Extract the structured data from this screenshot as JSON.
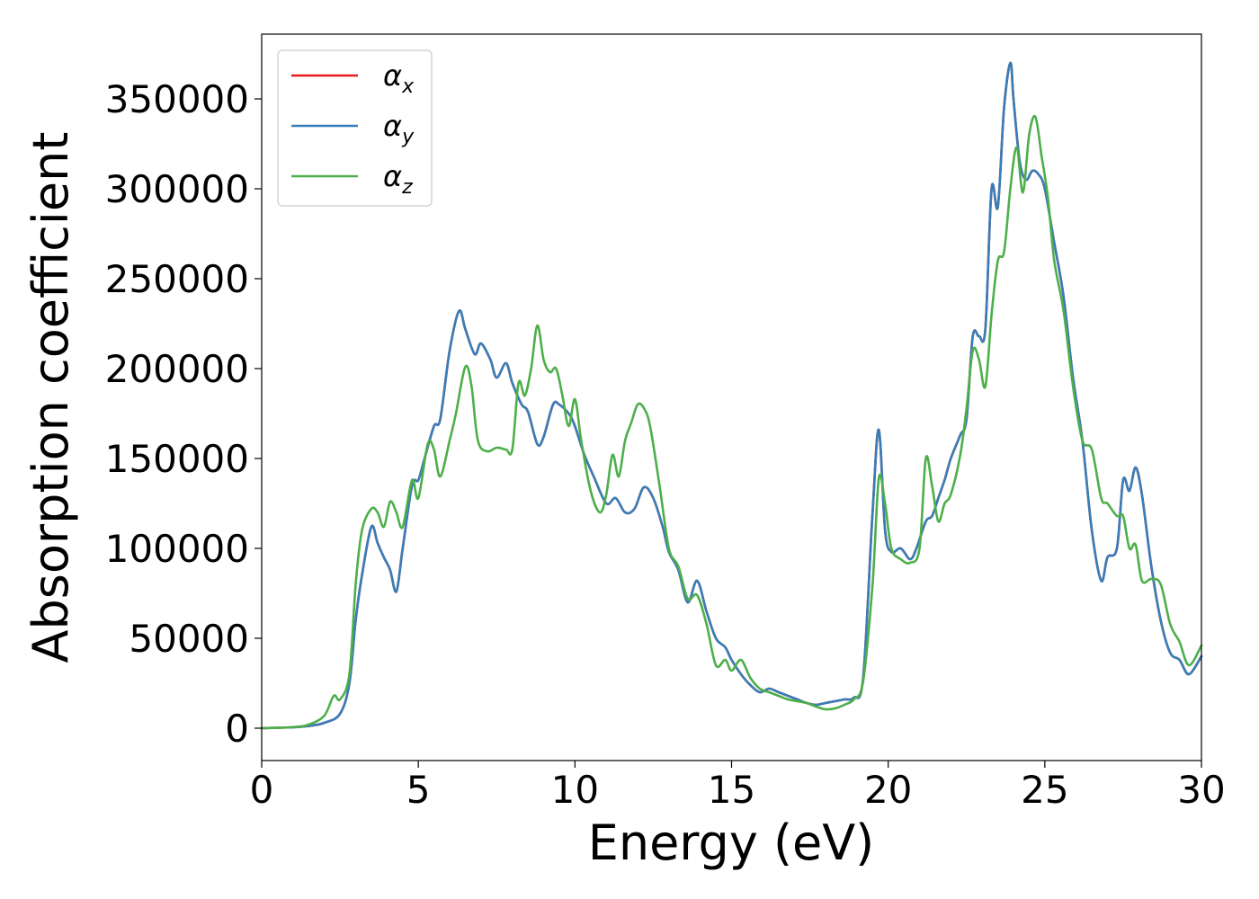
{
  "chart_data": {
    "type": "line",
    "xlabel": "Energy (eV)",
    "ylabel": "Absorption coefficient",
    "xlim": [
      0,
      30
    ],
    "ylim": [
      -18000,
      386000
    ],
    "xticks": [
      0,
      5,
      10,
      15,
      20,
      25,
      30
    ],
    "yticks": [
      0,
      50000,
      100000,
      150000,
      200000,
      250000,
      300000,
      350000
    ],
    "grid": false,
    "legend_position": "top-left",
    "legend": [
      {
        "symbol": "α",
        "sub": "x",
        "color": "#e41a1c"
      },
      {
        "symbol": "α",
        "sub": "y",
        "color": "#377eb8"
      },
      {
        "symbol": "α",
        "sub": "z",
        "color": "#4daf4a"
      }
    ],
    "series": [
      {
        "color": "#e41a1c",
        "x": [
          0,
          1,
          1.5,
          2,
          2.5,
          2.8,
          3,
          3.2,
          3.5,
          3.7,
          3.9,
          4.1,
          4.3,
          4.5,
          4.8,
          5,
          5.2,
          5.5,
          5.7,
          6,
          6.3,
          6.5,
          6.8,
          7,
          7.3,
          7.5,
          7.8,
          8,
          8.3,
          8.5,
          8.8,
          9,
          9.3,
          9.5,
          9.8,
          10,
          10.3,
          10.6,
          11,
          11.3,
          11.6,
          11.9,
          12.2,
          12.5,
          12.8,
          13,
          13.3,
          13.6,
          13.9,
          14.2,
          14.5,
          14.8,
          15,
          15.3,
          15.6,
          15.9,
          16.2,
          16.5,
          16.8,
          17.1,
          17.4,
          17.7,
          18,
          18.3,
          18.6,
          18.9,
          19.2,
          19.5,
          19.7,
          19.9,
          20.1,
          20.4,
          20.7,
          20.9,
          21.2,
          21.4,
          21.6,
          21.8,
          22,
          22.3,
          22.5,
          22.7,
          22.9,
          23.1,
          23.3,
          23.5,
          23.7,
          23.9,
          24,
          24.2,
          24.4,
          24.6,
          24.8,
          25,
          25.3,
          25.6,
          25.9,
          26.2,
          26.5,
          26.8,
          27,
          27.3,
          27.5,
          27.7,
          27.9,
          28.1,
          28.4,
          28.7,
          29,
          29.3,
          29.6,
          30
        ],
        "values": [
          0,
          500,
          1200,
          3000,
          8000,
          25000,
          60000,
          85000,
          112000,
          103000,
          95000,
          88000,
          76000,
          100000,
          135000,
          138000,
          150000,
          168000,
          172000,
          210000,
          232000,
          222000,
          208000,
          214000,
          205000,
          195000,
          203000,
          192000,
          180000,
          176000,
          158000,
          162000,
          180000,
          180000,
          175000,
          168000,
          152000,
          140000,
          125000,
          128000,
          120000,
          122000,
          134000,
          128000,
          112000,
          98000,
          88000,
          70000,
          82000,
          65000,
          50000,
          45000,
          38000,
          30000,
          24000,
          20000,
          22000,
          20000,
          18000,
          16000,
          14000,
          13000,
          14000,
          15000,
          16000,
          17000,
          28000,
          120000,
          166000,
          110000,
          98000,
          100000,
          94000,
          100000,
          115000,
          118000,
          128000,
          138000,
          150000,
          163000,
          172000,
          218000,
          218000,
          222000,
          300000,
          290000,
          345000,
          370000,
          350000,
          315000,
          305000,
          310000,
          308000,
          300000,
          270000,
          240000,
          195000,
          160000,
          110000,
          82000,
          95000,
          100000,
          138000,
          132000,
          145000,
          130000,
          90000,
          60000,
          42000,
          38000,
          30000,
          40000
        ]
      },
      {
        "color": "#377eb8",
        "x": [
          0,
          1,
          1.5,
          2,
          2.5,
          2.8,
          3,
          3.2,
          3.5,
          3.7,
          3.9,
          4.1,
          4.3,
          4.5,
          4.8,
          5,
          5.2,
          5.5,
          5.7,
          6,
          6.3,
          6.5,
          6.8,
          7,
          7.3,
          7.5,
          7.8,
          8,
          8.3,
          8.5,
          8.8,
          9,
          9.3,
          9.5,
          9.8,
          10,
          10.3,
          10.6,
          11,
          11.3,
          11.6,
          11.9,
          12.2,
          12.5,
          12.8,
          13,
          13.3,
          13.6,
          13.9,
          14.2,
          14.5,
          14.8,
          15,
          15.3,
          15.6,
          15.9,
          16.2,
          16.5,
          16.8,
          17.1,
          17.4,
          17.7,
          18,
          18.3,
          18.6,
          18.9,
          19.2,
          19.5,
          19.7,
          19.9,
          20.1,
          20.4,
          20.7,
          20.9,
          21.2,
          21.4,
          21.6,
          21.8,
          22,
          22.3,
          22.5,
          22.7,
          22.9,
          23.1,
          23.3,
          23.5,
          23.7,
          23.9,
          24,
          24.2,
          24.4,
          24.6,
          24.8,
          25,
          25.3,
          25.6,
          25.9,
          26.2,
          26.5,
          26.8,
          27,
          27.3,
          27.5,
          27.7,
          27.9,
          28.1,
          28.4,
          28.7,
          29,
          29.3,
          29.6,
          30
        ],
        "values": [
          0,
          500,
          1200,
          3000,
          8000,
          25000,
          60000,
          85000,
          112000,
          103000,
          95000,
          88000,
          76000,
          100000,
          135000,
          138000,
          150000,
          168000,
          172000,
          210000,
          232000,
          222000,
          208000,
          214000,
          205000,
          195000,
          203000,
          192000,
          180000,
          176000,
          158000,
          162000,
          180000,
          180000,
          175000,
          168000,
          152000,
          140000,
          125000,
          128000,
          120000,
          122000,
          134000,
          128000,
          112000,
          98000,
          88000,
          70000,
          82000,
          65000,
          50000,
          45000,
          38000,
          30000,
          24000,
          20000,
          22000,
          20000,
          18000,
          16000,
          14000,
          13000,
          14000,
          15000,
          16000,
          17000,
          28000,
          120000,
          166000,
          110000,
          98000,
          100000,
          94000,
          100000,
          115000,
          118000,
          128000,
          138000,
          150000,
          163000,
          172000,
          218000,
          218000,
          222000,
          300000,
          290000,
          345000,
          370000,
          350000,
          315000,
          305000,
          310000,
          308000,
          300000,
          270000,
          240000,
          195000,
          160000,
          110000,
          82000,
          95000,
          100000,
          138000,
          132000,
          145000,
          130000,
          90000,
          60000,
          42000,
          38000,
          30000,
          40000
        ]
      },
      {
        "color": "#4daf4a",
        "x": [
          0,
          1,
          1.5,
          2,
          2.3,
          2.5,
          2.8,
          3,
          3.2,
          3.5,
          3.7,
          3.9,
          4.1,
          4.3,
          4.5,
          4.8,
          5,
          5.3,
          5.5,
          5.7,
          6,
          6.2,
          6.5,
          6.7,
          6.9,
          7.2,
          7.5,
          7.8,
          8,
          8.2,
          8.4,
          8.6,
          8.8,
          9,
          9.2,
          9.4,
          9.6,
          9.8,
          10,
          10.2,
          10.5,
          10.8,
          11,
          11.2,
          11.4,
          11.6,
          11.8,
          12,
          12.2,
          12.4,
          12.7,
          13,
          13.3,
          13.6,
          13.9,
          14.2,
          14.5,
          14.8,
          15,
          15.3,
          15.6,
          15.9,
          16.2,
          16.5,
          16.8,
          17.1,
          17.4,
          17.7,
          18,
          18.3,
          18.6,
          18.9,
          19.2,
          19.5,
          19.7,
          19.9,
          20.1,
          20.4,
          20.7,
          21,
          21.2,
          21.4,
          21.6,
          21.8,
          22,
          22.3,
          22.5,
          22.7,
          22.9,
          23.1,
          23.3,
          23.5,
          23.7,
          23.9,
          24.1,
          24.3,
          24.5,
          24.7,
          24.9,
          25.1,
          25.3,
          25.6,
          25.9,
          26.2,
          26.5,
          26.8,
          27,
          27.3,
          27.5,
          27.7,
          27.9,
          28.1,
          28.4,
          28.7,
          29,
          29.3,
          29.6,
          30
        ],
        "values": [
          0,
          600,
          2000,
          7000,
          18000,
          16000,
          30000,
          80000,
          110000,
          122000,
          120000,
          112000,
          126000,
          120000,
          112000,
          138000,
          128000,
          158000,
          155000,
          140000,
          160000,
          175000,
          201000,
          190000,
          160000,
          154000,
          156000,
          155000,
          155000,
          192000,
          185000,
          200000,
          224000,
          205000,
          198000,
          200000,
          185000,
          168000,
          183000,
          160000,
          132000,
          120000,
          130000,
          152000,
          140000,
          160000,
          170000,
          180000,
          178000,
          168000,
          135000,
          100000,
          90000,
          72000,
          74000,
          58000,
          35000,
          38000,
          32000,
          38000,
          28000,
          22000,
          20000,
          18000,
          16000,
          15000,
          14000,
          12000,
          10500,
          11000,
          13000,
          16000,
          26000,
          80000,
          139000,
          125000,
          100000,
          94000,
          92000,
          100000,
          150000,
          135000,
          115000,
          125000,
          130000,
          152000,
          178000,
          210000,
          205000,
          190000,
          230000,
          260000,
          265000,
          300000,
          323000,
          298000,
          330000,
          340000,
          318000,
          295000,
          260000,
          232000,
          190000,
          160000,
          155000,
          128000,
          125000,
          118000,
          118000,
          100000,
          102000,
          82000,
          83000,
          80000,
          58000,
          48000,
          35000,
          46000
        ]
      }
    ]
  }
}
